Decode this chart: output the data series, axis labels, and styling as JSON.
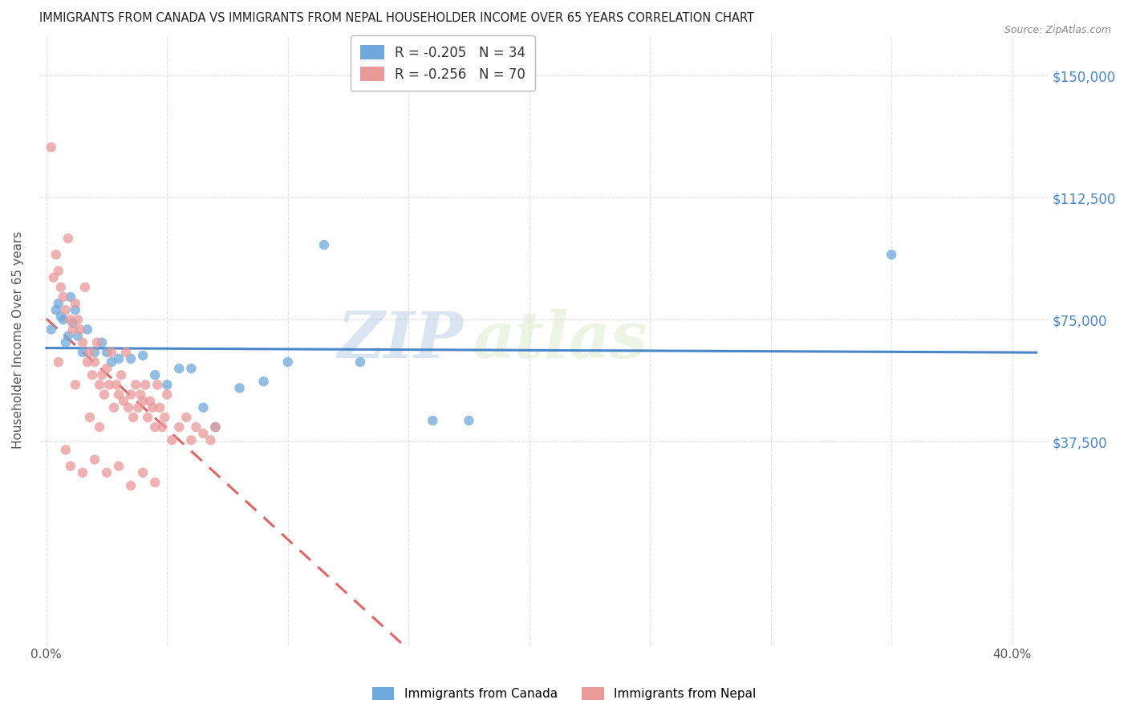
{
  "title": "IMMIGRANTS FROM CANADA VS IMMIGRANTS FROM NEPAL HOUSEHOLDER INCOME OVER 65 YEARS CORRELATION CHART",
  "source": "Source: ZipAtlas.com",
  "ylabel": "Householder Income Over 65 years",
  "legend_bottom": [
    "Immigrants from Canada",
    "Immigrants from Nepal"
  ],
  "canada_R": -0.205,
  "canada_N": 34,
  "nepal_R": -0.256,
  "nepal_N": 70,
  "ytick_labels": [
    "$37,500",
    "$75,000",
    "$112,500",
    "$150,000"
  ],
  "ytick_values": [
    37500,
    75000,
    112500,
    150000
  ],
  "ymax": 162500,
  "ymin": -25000,
  "xmin": -0.003,
  "xmax": 0.415,
  "canada_color": "#6fa8dc",
  "nepal_color": "#ea9999",
  "canada_line_color": "#4a86c8",
  "nepal_line_color": "#e06666",
  "watermark_zip": "ZIP",
  "watermark_atlas": "atlas",
  "canada_points": [
    [
      0.002,
      72000
    ],
    [
      0.004,
      78000
    ],
    [
      0.005,
      80000
    ],
    [
      0.006,
      76000
    ],
    [
      0.007,
      75000
    ],
    [
      0.008,
      68000
    ],
    [
      0.009,
      70000
    ],
    [
      0.01,
      82000
    ],
    [
      0.011,
      74000
    ],
    [
      0.012,
      78000
    ],
    [
      0.013,
      70000
    ],
    [
      0.015,
      65000
    ],
    [
      0.017,
      72000
    ],
    [
      0.02,
      65000
    ],
    [
      0.023,
      68000
    ],
    [
      0.025,
      65000
    ],
    [
      0.027,
      62000
    ],
    [
      0.03,
      63000
    ],
    [
      0.035,
      63000
    ],
    [
      0.04,
      64000
    ],
    [
      0.045,
      58000
    ],
    [
      0.05,
      55000
    ],
    [
      0.055,
      60000
    ],
    [
      0.06,
      60000
    ],
    [
      0.065,
      48000
    ],
    [
      0.07,
      42000
    ],
    [
      0.08,
      54000
    ],
    [
      0.09,
      56000
    ],
    [
      0.1,
      62000
    ],
    [
      0.115,
      98000
    ],
    [
      0.13,
      62000
    ],
    [
      0.16,
      44000
    ],
    [
      0.175,
      44000
    ],
    [
      0.35,
      95000
    ]
  ],
  "nepal_points": [
    [
      0.002,
      128000
    ],
    [
      0.003,
      88000
    ],
    [
      0.004,
      95000
    ],
    [
      0.005,
      90000
    ],
    [
      0.006,
      85000
    ],
    [
      0.007,
      82000
    ],
    [
      0.008,
      78000
    ],
    [
      0.009,
      100000
    ],
    [
      0.01,
      75000
    ],
    [
      0.011,
      72000
    ],
    [
      0.012,
      80000
    ],
    [
      0.013,
      75000
    ],
    [
      0.014,
      72000
    ],
    [
      0.015,
      68000
    ],
    [
      0.016,
      85000
    ],
    [
      0.017,
      62000
    ],
    [
      0.018,
      65000
    ],
    [
      0.019,
      58000
    ],
    [
      0.02,
      62000
    ],
    [
      0.021,
      68000
    ],
    [
      0.022,
      55000
    ],
    [
      0.023,
      58000
    ],
    [
      0.024,
      52000
    ],
    [
      0.025,
      60000
    ],
    [
      0.026,
      55000
    ],
    [
      0.027,
      65000
    ],
    [
      0.028,
      48000
    ],
    [
      0.029,
      55000
    ],
    [
      0.03,
      52000
    ],
    [
      0.031,
      58000
    ],
    [
      0.032,
      50000
    ],
    [
      0.033,
      65000
    ],
    [
      0.034,
      48000
    ],
    [
      0.035,
      52000
    ],
    [
      0.036,
      45000
    ],
    [
      0.037,
      55000
    ],
    [
      0.038,
      48000
    ],
    [
      0.039,
      52000
    ],
    [
      0.04,
      50000
    ],
    [
      0.041,
      55000
    ],
    [
      0.042,
      45000
    ],
    [
      0.043,
      50000
    ],
    [
      0.044,
      48000
    ],
    [
      0.045,
      42000
    ],
    [
      0.046,
      55000
    ],
    [
      0.047,
      48000
    ],
    [
      0.048,
      42000
    ],
    [
      0.049,
      45000
    ],
    [
      0.05,
      52000
    ],
    [
      0.052,
      38000
    ],
    [
      0.055,
      42000
    ],
    [
      0.058,
      45000
    ],
    [
      0.06,
      38000
    ],
    [
      0.062,
      42000
    ],
    [
      0.065,
      40000
    ],
    [
      0.068,
      38000
    ],
    [
      0.07,
      42000
    ],
    [
      0.008,
      35000
    ],
    [
      0.01,
      30000
    ],
    [
      0.015,
      28000
    ],
    [
      0.02,
      32000
    ],
    [
      0.025,
      28000
    ],
    [
      0.03,
      30000
    ],
    [
      0.035,
      24000
    ],
    [
      0.04,
      28000
    ],
    [
      0.045,
      25000
    ],
    [
      0.005,
      62000
    ],
    [
      0.012,
      55000
    ],
    [
      0.018,
      45000
    ],
    [
      0.022,
      42000
    ]
  ],
  "background_color": "#ffffff",
  "grid_color": "#e0e0e0",
  "title_color": "#222222",
  "marker_size": 9,
  "marker_alpha": 0.75
}
